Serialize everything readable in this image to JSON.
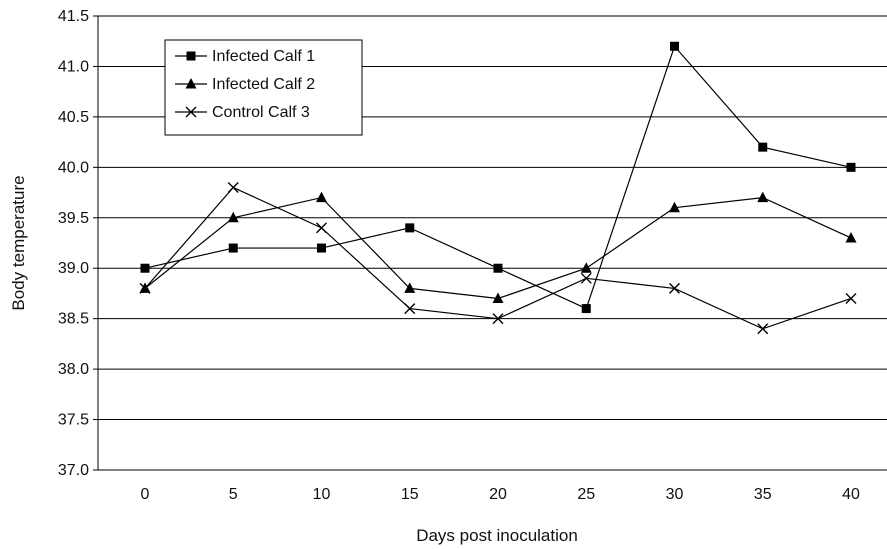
{
  "chart_data": {
    "type": "line",
    "xlabel": "Days post inoculation",
    "ylabel": "Body temperature",
    "x": [
      0,
      5,
      10,
      15,
      20,
      25,
      30,
      35,
      40
    ],
    "x_ticks": [
      "0",
      "5",
      "10",
      "15",
      "20",
      "25",
      "30",
      "35",
      "40"
    ],
    "ylim": [
      37.0,
      41.5
    ],
    "y_ticks": [
      "37.0",
      "37.5",
      "38.0",
      "38.5",
      "39.0",
      "39.5",
      "40.0",
      "40.5",
      "41.0",
      "41.5"
    ],
    "grid": true,
    "legend_position": "top-left",
    "series": [
      {
        "name": "Infected Calf 1",
        "marker": "square",
        "color": "#000000",
        "values": [
          39.0,
          39.2,
          39.2,
          39.4,
          39.0,
          38.6,
          41.2,
          40.2,
          40.0
        ]
      },
      {
        "name": "Infected Calf 2",
        "marker": "triangle",
        "color": "#000000",
        "values": [
          38.8,
          39.5,
          39.7,
          38.8,
          38.7,
          39.0,
          39.6,
          39.7,
          39.3
        ]
      },
      {
        "name": "Control Calf 3",
        "marker": "x",
        "color": "#000000",
        "values": [
          38.8,
          39.8,
          39.4,
          38.6,
          38.5,
          38.9,
          38.8,
          38.4,
          38.7
        ]
      }
    ]
  }
}
